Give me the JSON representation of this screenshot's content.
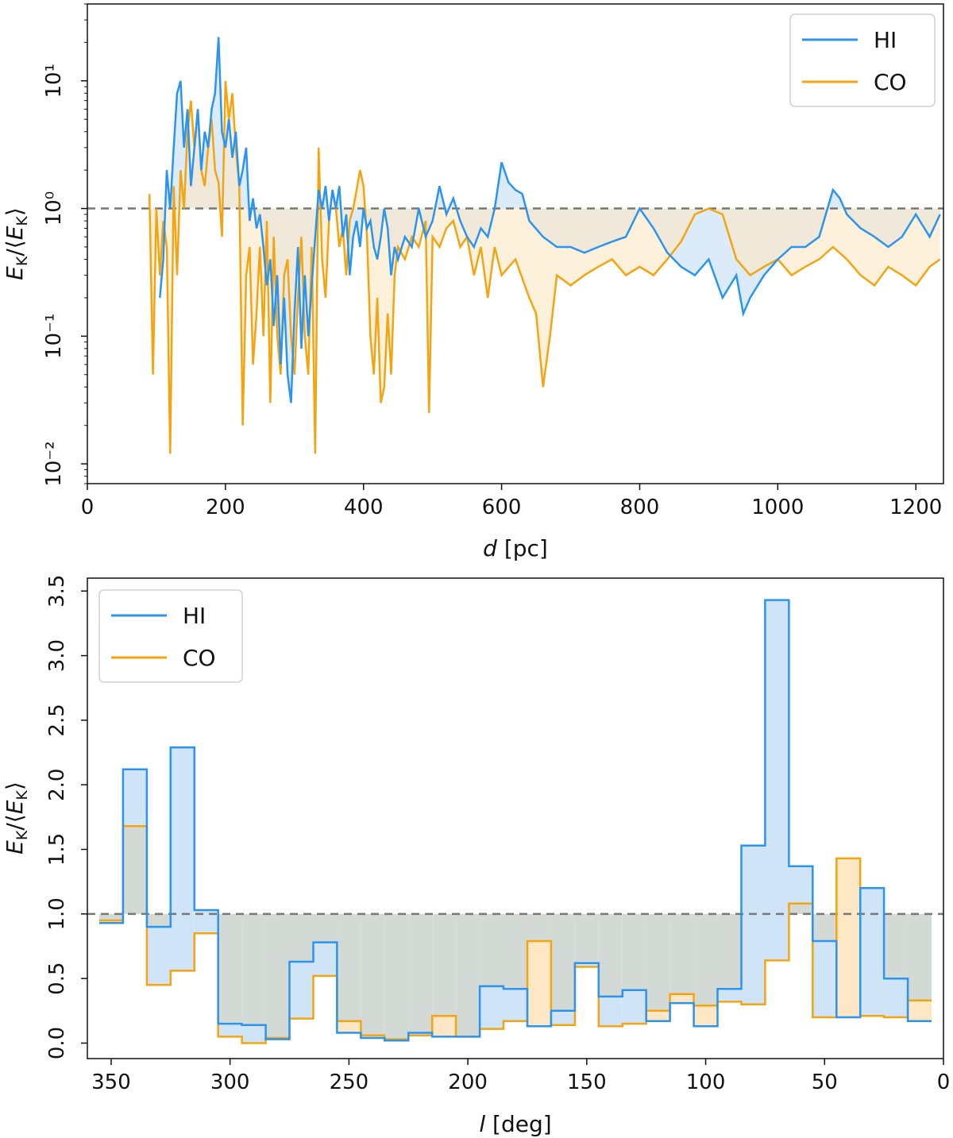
{
  "colors": {
    "hi": "#2b94ef",
    "co": "#f5a411",
    "hi_fill": "#cfe4f7",
    "co_fill": "#fde7c4",
    "gray_fill": "#d3dad6",
    "ref_line": "#777777"
  },
  "chart_data": [
    {
      "type": "line",
      "xlabel": "d [pc]",
      "ylabel": "E_K/⟨E_K⟩",
      "xlim": [
        0,
        1240
      ],
      "ylim": [
        0.007,
        40
      ],
      "yscale": "log",
      "legend": "top-right",
      "reference_line": 1.0,
      "xticks": [
        0,
        200,
        400,
        600,
        800,
        1000,
        1200
      ],
      "yticks": [
        {
          "value": 0.01,
          "label": "10⁻²"
        },
        {
          "value": 0.1,
          "label": "10⁻¹"
        },
        {
          "value": 1,
          "label": "10⁰"
        },
        {
          "value": 10,
          "label": "10¹"
        }
      ],
      "series": [
        {
          "name": "HI",
          "x": [
            105,
            110,
            115,
            120,
            125,
            130,
            135,
            140,
            145,
            150,
            155,
            160,
            165,
            170,
            175,
            180,
            185,
            190,
            195,
            200,
            205,
            210,
            215,
            220,
            225,
            230,
            235,
            240,
            245,
            250,
            255,
            260,
            265,
            270,
            275,
            280,
            285,
            290,
            295,
            300,
            305,
            310,
            315,
            320,
            325,
            330,
            335,
            340,
            345,
            350,
            355,
            360,
            365,
            370,
            375,
            380,
            385,
            390,
            395,
            400,
            405,
            410,
            415,
            420,
            425,
            430,
            435,
            440,
            445,
            450,
            460,
            470,
            480,
            490,
            500,
            510,
            520,
            530,
            540,
            550,
            560,
            570,
            580,
            590,
            600,
            610,
            620,
            630,
            640,
            660,
            680,
            700,
            720,
            740,
            760,
            780,
            800,
            820,
            840,
            860,
            880,
            900,
            920,
            940,
            950,
            960,
            980,
            1000,
            1020,
            1040,
            1060,
            1080,
            1090,
            1100,
            1120,
            1140,
            1160,
            1180,
            1200,
            1220,
            1235
          ],
          "y": [
            0.2,
            0.4,
            2.0,
            1.0,
            3.0,
            8.0,
            10.0,
            3.0,
            6.0,
            1.5,
            3.0,
            6.0,
            2.0,
            4.0,
            3.0,
            6.0,
            8.0,
            22,
            4.0,
            3.0,
            5.0,
            2.5,
            4.0,
            1.5,
            2.0,
            3.0,
            0.8,
            1.2,
            0.7,
            0.9,
            0.5,
            0.25,
            0.4,
            0.12,
            0.3,
            0.06,
            0.2,
            0.05,
            0.03,
            0.15,
            0.5,
            0.08,
            0.3,
            0.1,
            0.25,
            0.6,
            1.4,
            1.0,
            1.5,
            0.8,
            1.4,
            1.0,
            1.5,
            0.6,
            0.9,
            0.3,
            0.6,
            0.8,
            0.5,
            1.0,
            0.7,
            0.8,
            0.5,
            0.4,
            0.6,
            1.0,
            0.7,
            0.3,
            0.5,
            0.4,
            0.6,
            0.5,
            1.0,
            0.6,
            0.8,
            1.5,
            0.9,
            1.2,
            0.8,
            0.6,
            0.5,
            0.7,
            0.6,
            1.0,
            2.3,
            1.6,
            1.4,
            1.3,
            0.8,
            0.6,
            0.5,
            0.5,
            0.45,
            0.5,
            0.55,
            0.6,
            1.0,
            0.7,
            0.45,
            0.35,
            0.3,
            0.4,
            0.2,
            0.3,
            0.15,
            0.2,
            0.3,
            0.4,
            0.5,
            0.5,
            0.6,
            1.4,
            1.2,
            0.9,
            0.7,
            0.6,
            0.5,
            0.6,
            0.9,
            0.6,
            0.9
          ]
        },
        {
          "name": "CO",
          "x": [
            90,
            95,
            100,
            105,
            110,
            115,
            120,
            125,
            130,
            135,
            140,
            145,
            150,
            155,
            160,
            165,
            170,
            175,
            180,
            185,
            190,
            195,
            200,
            205,
            210,
            215,
            220,
            225,
            230,
            235,
            240,
            245,
            250,
            255,
            260,
            265,
            270,
            275,
            280,
            285,
            290,
            295,
            300,
            305,
            310,
            315,
            320,
            325,
            330,
            335,
            340,
            345,
            350,
            355,
            360,
            365,
            370,
            375,
            380,
            385,
            390,
            395,
            400,
            405,
            410,
            415,
            420,
            425,
            430,
            435,
            440,
            445,
            450,
            460,
            470,
            480,
            490,
            495,
            500,
            510,
            520,
            530,
            540,
            550,
            560,
            570,
            580,
            590,
            600,
            620,
            640,
            650,
            660,
            670,
            680,
            700,
            720,
            740,
            760,
            780,
            800,
            820,
            840,
            860,
            880,
            900,
            920,
            940,
            960,
            980,
            1000,
            1020,
            1040,
            1060,
            1080,
            1100,
            1120,
            1140,
            1160,
            1180,
            1200,
            1220,
            1235
          ],
          "y": [
            1.3,
            0.05,
            1.0,
            0.3,
            0.8,
            0.5,
            0.012,
            1.5,
            0.3,
            2.0,
            1.0,
            4.0,
            7.0,
            3.0,
            6.0,
            2.0,
            1.5,
            3.0,
            5.0,
            2.0,
            1.6,
            0.6,
            10.0,
            5.0,
            8.0,
            3.0,
            1.5,
            0.02,
            0.3,
            0.5,
            0.06,
            0.15,
            0.5,
            0.1,
            0.8,
            0.03,
            0.6,
            0.1,
            0.05,
            0.3,
            0.4,
            0.1,
            0.05,
            0.2,
            0.6,
            0.1,
            0.05,
            0.5,
            0.012,
            3.0,
            0.4,
            0.2,
            0.8,
            1.4,
            1.0,
            0.5,
            0.7,
            0.3,
            0.8,
            1.0,
            1.4,
            2.0,
            1.5,
            0.6,
            0.1,
            0.05,
            0.2,
            0.03,
            0.04,
            0.15,
            0.05,
            0.3,
            0.5,
            0.4,
            0.6,
            0.5,
            0.8,
            0.025,
            0.6,
            0.5,
            0.7,
            0.8,
            0.5,
            0.6,
            0.3,
            0.5,
            0.2,
            0.5,
            0.3,
            0.4,
            0.2,
            0.15,
            0.04,
            0.1,
            0.3,
            0.25,
            0.3,
            0.35,
            0.4,
            0.3,
            0.35,
            0.3,
            0.4,
            0.55,
            0.9,
            1.0,
            0.9,
            0.4,
            0.3,
            0.35,
            0.4,
            0.3,
            0.35,
            0.4,
            0.5,
            0.4,
            0.3,
            0.25,
            0.35,
            0.3,
            0.25,
            0.35,
            0.4
          ]
        }
      ]
    },
    {
      "type": "step",
      "xlabel": "l [deg]",
      "ylabel": "E_K/⟨E_K⟩",
      "xlim": [
        360,
        0
      ],
      "ylim": [
        -0.12,
        3.6
      ],
      "legend": "top-left",
      "reference_line": 1.0,
      "xticks": [
        350,
        300,
        250,
        200,
        150,
        100,
        50,
        0
      ],
      "yticks": [
        0.0,
        0.5,
        1.0,
        1.5,
        2.0,
        2.5,
        3.0,
        3.5
      ],
      "bin_edges": [
        355,
        345,
        335,
        325,
        315,
        305,
        295,
        285,
        275,
        265,
        255,
        245,
        235,
        225,
        215,
        205,
        195,
        185,
        175,
        165,
        155,
        145,
        135,
        125,
        115,
        105,
        95,
        85,
        75,
        65,
        55,
        45,
        35,
        25,
        15,
        5
      ],
      "series": [
        {
          "name": "HI",
          "values": [
            0.93,
            2.12,
            0.9,
            2.29,
            1.03,
            0.15,
            0.14,
            0.03,
            0.63,
            0.78,
            0.08,
            0.04,
            0.02,
            0.08,
            0.05,
            0.05,
            0.44,
            0.42,
            0.13,
            0.25,
            0.62,
            0.36,
            0.41,
            0.17,
            0.31,
            0.13,
            0.42,
            1.53,
            3.43,
            1.37,
            0.79,
            0.2,
            1.2,
            0.5,
            0.17
          ]
        },
        {
          "name": "CO",
          "values": [
            0.95,
            1.68,
            0.45,
            0.56,
            0.85,
            0.05,
            0.0,
            0.04,
            0.19,
            0.52,
            0.17,
            0.06,
            0.03,
            0.06,
            0.21,
            0.05,
            0.11,
            0.17,
            0.79,
            0.14,
            0.59,
            0.13,
            0.15,
            0.25,
            0.38,
            0.29,
            0.32,
            0.3,
            0.64,
            1.08,
            0.2,
            1.43,
            0.21,
            0.2,
            0.33
          ]
        }
      ]
    }
  ]
}
